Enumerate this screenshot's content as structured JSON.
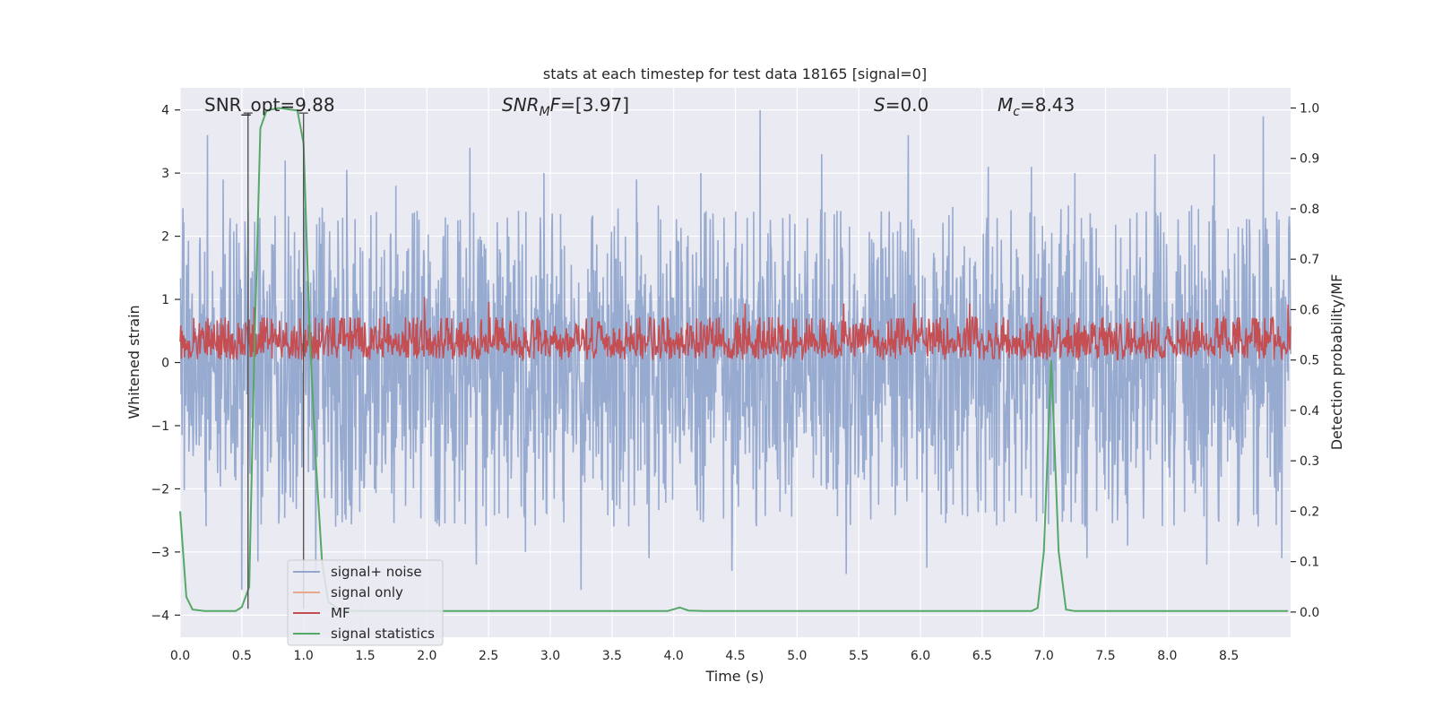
{
  "chart_data": {
    "type": "line",
    "title": "stats at each timestep for test data 18165 [signal=0]",
    "xlabel": "Time (s)",
    "ylabel": "Whitened strain",
    "ylabel_right": "Detection probability/MF",
    "xlim": [
      0.0,
      9.0
    ],
    "ylim": [
      -4.35,
      4.35
    ],
    "ylim_right": [
      -0.05,
      1.04
    ],
    "x_ticks": [
      "0.0",
      "0.5",
      "1.0",
      "1.5",
      "2.0",
      "2.5",
      "3.0",
      "3.5",
      "4.0",
      "4.5",
      "5.0",
      "5.5",
      "6.0",
      "6.5",
      "7.0",
      "7.5",
      "8.0",
      "8.5"
    ],
    "y_ticks": [
      "4",
      "3",
      "2",
      "1",
      "0",
      "−1",
      "−2",
      "−3",
      "−4"
    ],
    "y_ticks_right": [
      "1.0",
      "0.9",
      "0.8",
      "0.7",
      "0.6",
      "0.5",
      "0.4",
      "0.3",
      "0.2",
      "0.1",
      "0.0"
    ],
    "grid": true,
    "legend_placement": "lower-left",
    "annotations": {
      "snr_opt": "SNR_opt=9.88",
      "snr_mf_sym": "SNR",
      "snr_mf_sub": "M",
      "snr_mf_tail": "F",
      "snr_mf_value": "=[3.97]",
      "s_sym": "S",
      "s_value": "=0.0",
      "mc_sym": "M",
      "mc_sub": "c",
      "mc_value": "=8.43"
    },
    "markers": [
      {
        "x": 0.55,
        "y_range": [
          -3.9,
          3.95
        ]
      },
      {
        "x": 1.0,
        "y_range": [
          -3.9,
          3.95
        ]
      }
    ],
    "series": [
      {
        "name": "signal+ noise",
        "color": "#92a6ce",
        "axis": "left",
        "x_range": [
          0.0,
          9.0
        ],
        "envelope_pos": [
          1.4,
          2.5
        ],
        "envelope_neg": [
          -1.4,
          -2.6
        ],
        "peaks": [
          [
            0.22,
            3.6
          ],
          [
            0.35,
            2.9
          ],
          [
            0.85,
            3.2
          ],
          [
            1.35,
            3.05
          ],
          [
            1.75,
            2.8
          ],
          [
            2.35,
            3.4
          ],
          [
            2.95,
            3.0
          ],
          [
            3.25,
            3.5
          ],
          [
            3.7,
            2.9
          ],
          [
            4.22,
            3.0
          ],
          [
            4.7,
            4.0
          ],
          [
            5.2,
            3.3
          ],
          [
            5.9,
            3.6
          ],
          [
            6.55,
            3.1
          ],
          [
            6.9,
            3.1
          ],
          [
            7.25,
            3.0
          ],
          [
            7.9,
            3.3
          ],
          [
            8.38,
            3.3
          ],
          [
            8.78,
            3.9
          ],
          [
            0.5,
            -3.6
          ],
          [
            0.63,
            -3.15
          ],
          [
            1.1,
            -3.3
          ],
          [
            2.4,
            -3.2
          ],
          [
            2.8,
            -3.0
          ],
          [
            3.25,
            -3.6
          ],
          [
            3.8,
            -3.1
          ],
          [
            4.47,
            -3.3
          ],
          [
            5.4,
            -3.35
          ],
          [
            6.05,
            -3.25
          ],
          [
            7.35,
            -3.1
          ],
          [
            7.68,
            -2.9
          ],
          [
            8.32,
            -3.2
          ],
          [
            8.93,
            -3.1
          ]
        ]
      },
      {
        "name": "signal only",
        "color": "#e8a98a",
        "axis": "left"
      },
      {
        "name": "MF",
        "color": "#c44e52",
        "axis": "right",
        "baseline": 0.5,
        "band": [
          0.525,
          0.585
        ],
        "max": 0.625,
        "peaks": [
          [
            0.6,
            0.605
          ],
          [
            1.98,
            0.625
          ],
          [
            2.5,
            0.615
          ],
          [
            4.58,
            0.612
          ],
          [
            5.38,
            0.612
          ],
          [
            5.95,
            0.613
          ],
          [
            6.4,
            0.612
          ],
          [
            6.98,
            0.625
          ],
          [
            8.98,
            0.61
          ]
        ]
      },
      {
        "name": "signal statistics",
        "color": "#55a868",
        "axis": "right",
        "points": [
          [
            0.0,
            0.2
          ],
          [
            0.05,
            0.03
          ],
          [
            0.1,
            0.005
          ],
          [
            0.2,
            0.002
          ],
          [
            0.45,
            0.002
          ],
          [
            0.5,
            0.01
          ],
          [
            0.56,
            0.05
          ],
          [
            0.6,
            0.5
          ],
          [
            0.65,
            0.96
          ],
          [
            0.7,
            0.995
          ],
          [
            0.8,
            1.0
          ],
          [
            0.95,
            0.995
          ],
          [
            1.0,
            0.93
          ],
          [
            1.05,
            0.55
          ],
          [
            1.1,
            0.3
          ],
          [
            1.15,
            0.1
          ],
          [
            1.2,
            0.02
          ],
          [
            1.3,
            0.003
          ],
          [
            1.5,
            0.002
          ],
          [
            3.95,
            0.002
          ],
          [
            4.05,
            0.009
          ],
          [
            4.12,
            0.003
          ],
          [
            4.25,
            0.002
          ],
          [
            6.9,
            0.002
          ],
          [
            6.95,
            0.008
          ],
          [
            7.0,
            0.12
          ],
          [
            7.06,
            0.5
          ],
          [
            7.12,
            0.12
          ],
          [
            7.18,
            0.005
          ],
          [
            7.25,
            0.002
          ],
          [
            8.98,
            0.002
          ]
        ]
      }
    ]
  }
}
